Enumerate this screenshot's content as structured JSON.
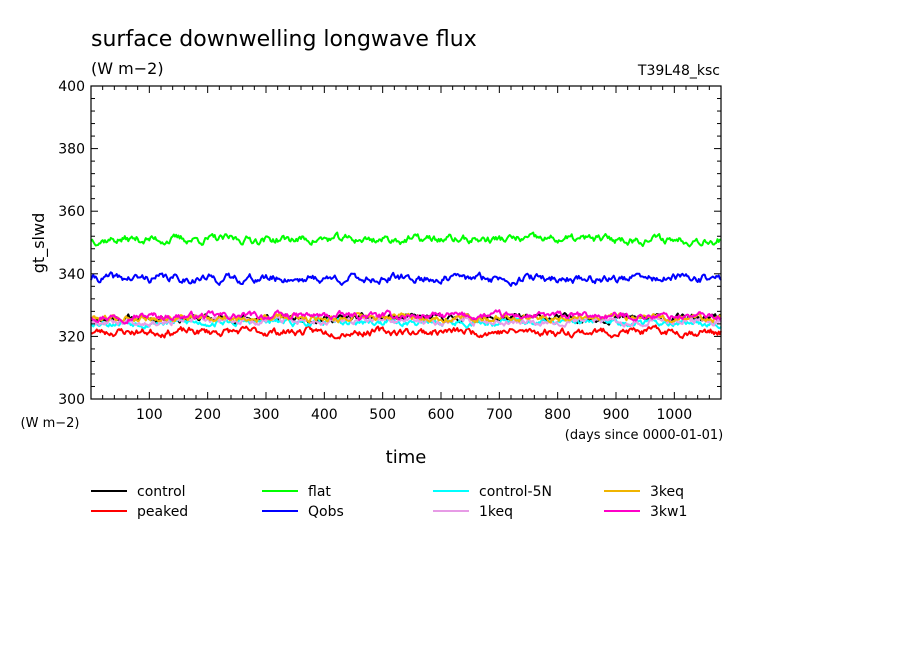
{
  "chart_data": {
    "type": "line",
    "title": "surface downwelling longwave flux",
    "units_label": "(W m−2)",
    "run_label": "T39L48_ksc",
    "ylabel": "gt_slwd",
    "xlabel": "time",
    "x_units_label": "(days since 0000-01-01)",
    "y_units_label": "(W m−2)",
    "xlim": [
      0,
      1080
    ],
    "ylim": [
      300,
      400
    ],
    "x_ticks": [
      100,
      200,
      300,
      400,
      500,
      600,
      700,
      800,
      900,
      1000
    ],
    "y_ticks": [
      300,
      320,
      340,
      360,
      380,
      400
    ],
    "grid": false,
    "legend_position": "bottom",
    "series": [
      {
        "name": "control",
        "color": "#000000",
        "mean": 325.8,
        "amplitude": 1.0,
        "seed": 11,
        "x": [
          0,
          120,
          240,
          360,
          480,
          600,
          720,
          840,
          960,
          1080
        ],
        "values": [
          326,
          326,
          326,
          325,
          325,
          326,
          325,
          325,
          325,
          325
        ]
      },
      {
        "name": "peaked",
        "color": "#ff0000",
        "mean": 321.5,
        "amplitude": 1.1,
        "seed": 23,
        "x": [
          0,
          120,
          240,
          360,
          480,
          600,
          720,
          840,
          960,
          1080
        ],
        "values": [
          321,
          322,
          321,
          321,
          321,
          322,
          322,
          321,
          321,
          322
        ]
      },
      {
        "name": "flat",
        "color": "#00ff00",
        "mean": 351.0,
        "amplitude": 1.2,
        "seed": 37,
        "x": [
          0,
          120,
          240,
          360,
          480,
          600,
          720,
          840,
          960,
          1080
        ],
        "values": [
          351,
          351,
          351,
          351,
          351,
          351,
          350,
          351,
          351,
          351
        ]
      },
      {
        "name": "Qobs",
        "color": "#0000ff",
        "mean": 338.5,
        "amplitude": 1.2,
        "seed": 41,
        "x": [
          0,
          120,
          240,
          360,
          480,
          600,
          720,
          840,
          960,
          1080
        ],
        "values": [
          339,
          338,
          338,
          338,
          339,
          339,
          339,
          338,
          338,
          338
        ]
      },
      {
        "name": "control-5N",
        "color": "#00ffff",
        "mean": 324.5,
        "amplitude": 1.0,
        "seed": 53,
        "x": [
          0,
          120,
          240,
          360,
          480,
          600,
          720,
          840,
          960,
          1080
        ],
        "values": [
          325,
          324,
          324,
          325,
          324,
          325,
          325,
          324,
          324,
          324
        ]
      },
      {
        "name": "1keq",
        "color": "#e79be6",
        "mean": 325.0,
        "amplitude": 1.0,
        "seed": 67,
        "x": [
          0,
          120,
          240,
          360,
          480,
          600,
          720,
          840,
          960,
          1080
        ],
        "values": [
          325,
          325,
          325,
          325,
          324,
          325,
          325,
          325,
          325,
          325
        ]
      },
      {
        "name": "3keq",
        "color": "#f0b400",
        "mean": 326.0,
        "amplitude": 1.0,
        "seed": 79,
        "x": [
          0,
          120,
          240,
          360,
          480,
          600,
          720,
          840,
          960,
          1080
        ],
        "values": [
          326,
          326,
          326,
          326,
          326,
          326,
          326,
          326,
          326,
          326
        ]
      },
      {
        "name": "3kw1",
        "color": "#ff00c8",
        "mean": 326.5,
        "amplitude": 1.0,
        "seed": 97,
        "x": [
          0,
          120,
          240,
          360,
          480,
          600,
          720,
          840,
          960,
          1080
        ],
        "values": [
          327,
          326,
          327,
          326,
          327,
          327,
          327,
          326,
          326,
          326
        ]
      }
    ]
  }
}
